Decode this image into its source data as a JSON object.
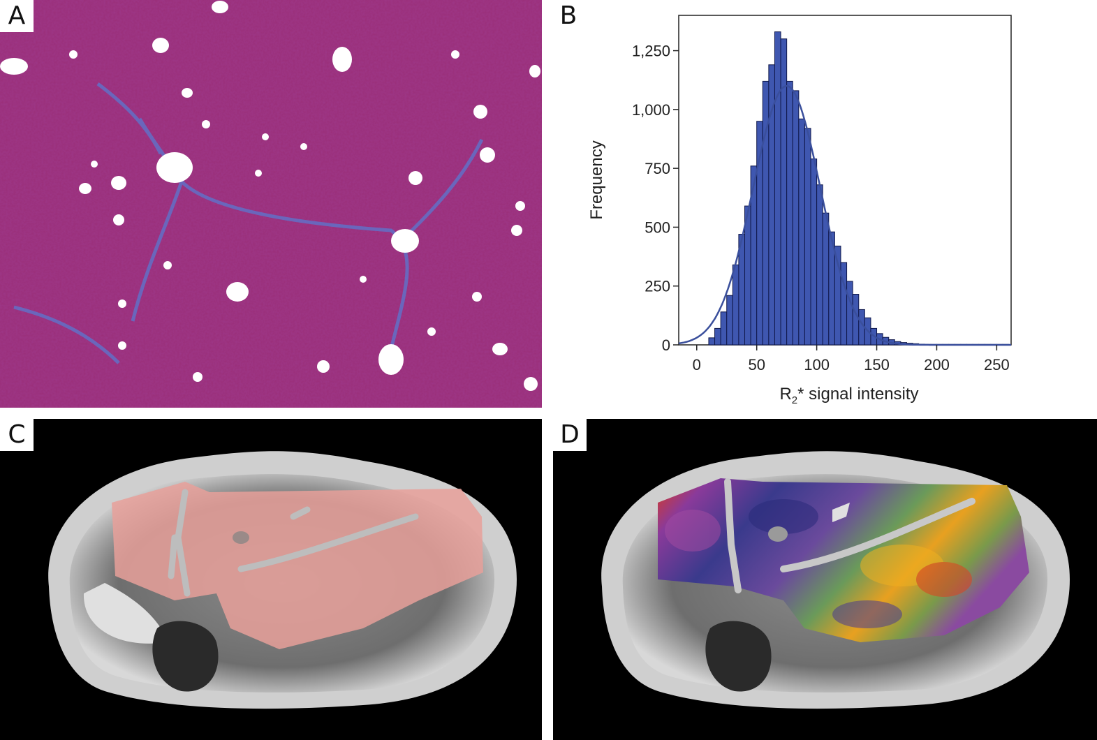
{
  "panels": {
    "a": {
      "label": "A"
    },
    "b": {
      "label": "B"
    },
    "c": {
      "label": "C"
    },
    "d": {
      "label": "D"
    }
  },
  "colors": {
    "histology_tissue": "#9a2e78",
    "histology_fibrosis": "#5a78d0",
    "bar_fill": "#3f57b0",
    "bar_stroke": "#10184a",
    "fit_curve": "#3a4f9c",
    "liver_overlay": "#e8a09a"
  },
  "chart_data": {
    "type": "bar",
    "title": "",
    "xlabel_main": "R",
    "xlabel_sub": "2",
    "xlabel_rest": "* signal intensity",
    "ylabel": "Frequency",
    "xlim": [
      -15,
      262
    ],
    "ylim": [
      0,
      1400
    ],
    "x_ticks": [
      0,
      50,
      100,
      150,
      200,
      250
    ],
    "x_tick_labels": [
      "0",
      "50",
      "100",
      "150",
      "200",
      "250"
    ],
    "y_ticks": [
      0,
      250,
      500,
      750,
      1000,
      1250
    ],
    "y_tick_labels": [
      "0",
      "250",
      "500",
      "750",
      "1,000",
      "1,250"
    ],
    "bin_width": 5,
    "bin_starts": [
      10,
      15,
      20,
      25,
      30,
      35,
      40,
      45,
      50,
      55,
      60,
      65,
      70,
      75,
      80,
      85,
      90,
      95,
      100,
      105,
      110,
      115,
      120,
      125,
      130,
      135,
      140,
      145,
      150,
      155,
      160,
      165,
      170,
      175,
      180,
      185,
      190,
      195,
      200,
      205,
      210,
      215,
      220,
      225,
      230,
      235,
      240,
      245,
      250,
      255
    ],
    "values": [
      30,
      70,
      140,
      210,
      340,
      470,
      590,
      760,
      950,
      1120,
      1190,
      1330,
      1300,
      1120,
      1080,
      960,
      920,
      790,
      680,
      560,
      480,
      420,
      350,
      270,
      215,
      150,
      115,
      70,
      48,
      32,
      22,
      14,
      10,
      7,
      5,
      3,
      2,
      2,
      2,
      2,
      2,
      2,
      2,
      2,
      2,
      2,
      2,
      2,
      2,
      2
    ],
    "fit_curve": {
      "type": "normal",
      "mean": 75,
      "sd": 28,
      "peak": 1100
    }
  }
}
